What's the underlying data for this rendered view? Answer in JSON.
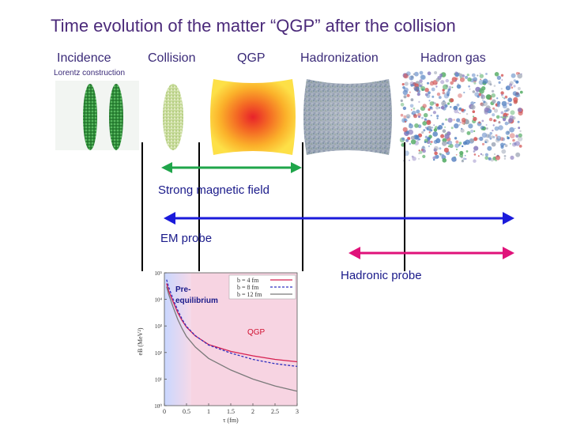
{
  "title": "Time evolution of the matter “QGP” after the collision",
  "stages": {
    "incidence": "Incidence",
    "collision": "Collision",
    "qgp": "QGP",
    "hadronization": "Hadronization",
    "hadron_gas": "Hadron gas"
  },
  "lorentz_note": "Lorentz construction",
  "arrows": {
    "magnetic": {
      "label": "Strong magnetic field",
      "color": "#1fa54a"
    },
    "em": {
      "label": "EM probe",
      "color": "#1a1adb"
    },
    "hadronic": {
      "label": "Hadronic probe",
      "color": "#e0127a"
    }
  },
  "inset": {
    "pre_label": "Pre-\nequilibrium",
    "qgp_label": "QGP",
    "legend": [
      "b = 4 fm",
      "b = 8 fm",
      "b = 12 fm"
    ],
    "ylabel": "eB (MeV²)",
    "xlabel": "τ (fm)"
  },
  "chart_data": {
    "type": "line",
    "title": "",
    "xlabel": "τ (fm)",
    "ylabel": "eB (MeV²)",
    "xlim": [
      0,
      3
    ],
    "ylim": [
      1,
      100000
    ],
    "yscale": "log",
    "x_ticks": [
      "0",
      "0.5",
      "1",
      "1.5",
      "2",
      "2.5",
      "3"
    ],
    "y_ticks": [
      "10⁰",
      "10¹",
      "10²",
      "10³",
      "10⁴",
      "10⁵"
    ],
    "series": [
      {
        "name": "b = 4 fm",
        "color": "#d62050",
        "dash": "solid",
        "x": [
          0.05,
          0.1,
          0.2,
          0.3,
          0.4,
          0.5,
          0.7,
          1.0,
          1.5,
          2.0,
          2.5,
          3.0
        ],
        "y": [
          40000,
          20000,
          8000,
          3200,
          1600,
          900,
          420,
          200,
          110,
          75,
          55,
          45
        ]
      },
      {
        "name": "b = 8 fm",
        "color": "#3030c0",
        "dash": "dashed",
        "x": [
          0.05,
          0.1,
          0.2,
          0.3,
          0.4,
          0.5,
          0.7,
          1.0,
          1.5,
          2.0,
          2.5,
          3.0
        ],
        "y": [
          55000,
          28000,
          10000,
          4000,
          1800,
          950,
          430,
          190,
          95,
          55,
          38,
          30
        ]
      },
      {
        "name": "b = 12 fm",
        "color": "#7a7a7a",
        "dash": "solid",
        "x": [
          0.05,
          0.1,
          0.2,
          0.3,
          0.4,
          0.5,
          0.7,
          1.0,
          1.5,
          2.0,
          2.5,
          3.0
        ],
        "y": [
          30000,
          15000,
          5000,
          1800,
          800,
          400,
          160,
          60,
          22,
          10,
          5.5,
          3.5
        ]
      }
    ],
    "regions": [
      {
        "name": "Pre-equilibrium",
        "x_from": 0,
        "x_to": 0.6
      },
      {
        "name": "QGP",
        "x_from": 0.6,
        "x_to": 3
      }
    ]
  }
}
